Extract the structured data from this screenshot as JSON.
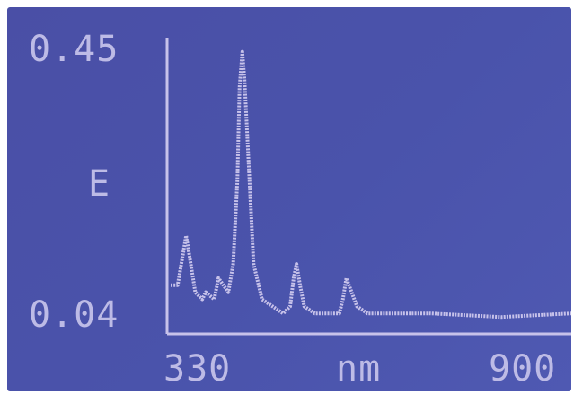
{
  "chart_data": {
    "type": "line",
    "title": "",
    "xlabel": "nm",
    "ylabel": "E",
    "xlim": [
      330,
      900
    ],
    "ylim": [
      0.04,
      0.45
    ],
    "x_tick_labels": [
      "330",
      "900"
    ],
    "y_tick_labels": [
      "0.45",
      "0.04"
    ],
    "grid": false,
    "legend": "none",
    "series": [
      {
        "x": [
          330,
          340,
          352,
          357,
          365,
          375,
          380,
          392,
          398,
          412,
          419,
          425,
          428,
          432,
          435,
          441,
          448,
          460,
          475,
          490,
          500,
          505,
          509,
          514,
          520,
          535,
          556,
          570,
          575,
          580,
          595,
          610,
          640,
          660,
          700,
          800,
          900
        ],
        "y": [
          0.1,
          0.1,
          0.17,
          0.14,
          0.09,
          0.08,
          0.09,
          0.08,
          0.11,
          0.09,
          0.13,
          0.25,
          0.38,
          0.43,
          0.39,
          0.27,
          0.13,
          0.08,
          0.07,
          0.06,
          0.07,
          0.11,
          0.13,
          0.1,
          0.07,
          0.06,
          0.06,
          0.06,
          0.08,
          0.11,
          0.07,
          0.06,
          0.06,
          0.06,
          0.06,
          0.055,
          0.06
        ]
      }
    ],
    "colors": {
      "screen": "#4b51a8",
      "trace": "#c7c2ea",
      "label": "#bdbbe6"
    }
  }
}
